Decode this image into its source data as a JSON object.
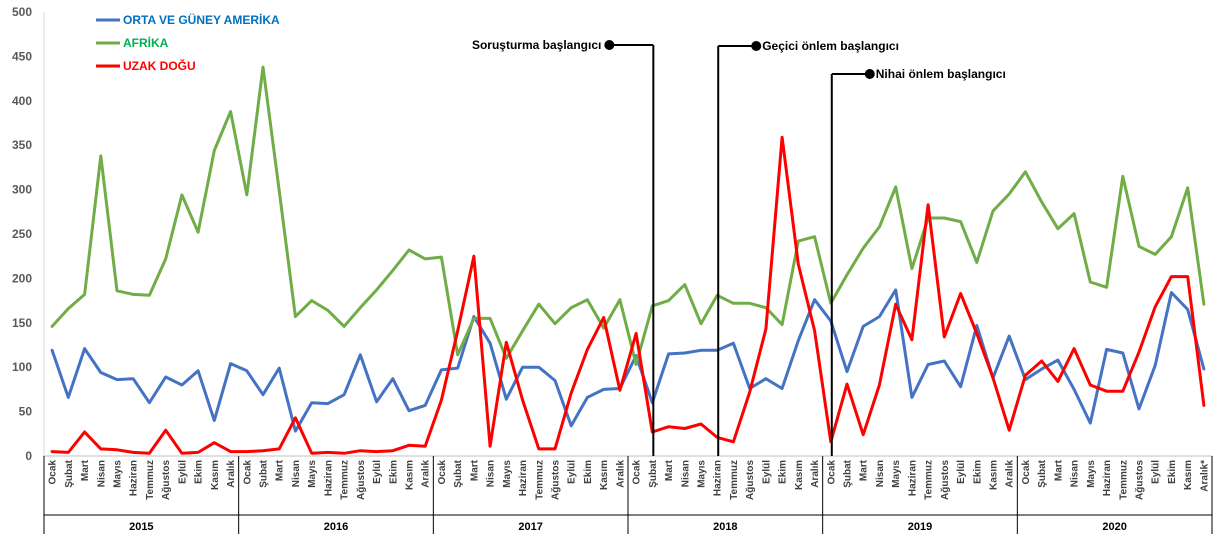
{
  "chart_data": {
    "type": "line",
    "title": "",
    "xlabel": "",
    "ylabel": "",
    "ylim": [
      0,
      500
    ],
    "yticks": [
      0,
      50,
      100,
      150,
      200,
      250,
      300,
      350,
      400,
      450,
      500
    ],
    "grid": false,
    "legend_position": "top-left",
    "months": [
      "Ocak",
      "Şubat",
      "Mart",
      "Nisan",
      "Mayıs",
      "Haziran",
      "Temmuz",
      "Ağustos",
      "Eylül",
      "Ekim",
      "Kasım",
      "Aralık"
    ],
    "last_month_label": "Aralık*",
    "years": [
      "2015",
      "2016",
      "2017",
      "2018",
      "2019",
      "2020"
    ],
    "series": [
      {
        "name": "ORTA VE GÜNEY AMERİKA",
        "color": "#4472C4",
        "label_color": "#0070C0",
        "values": [
          119,
          66,
          121,
          94,
          86,
          87,
          60,
          89,
          80,
          96,
          40,
          104,
          96,
          69,
          99,
          28,
          60,
          59,
          69,
          114,
          61,
          87,
          51,
          57,
          97,
          99,
          157,
          127,
          64,
          100,
          100,
          85,
          34,
          66,
          75,
          76,
          113,
          60,
          115,
          116,
          119,
          119,
          127,
          76,
          87,
          76,
          130,
          176,
          152,
          95,
          146,
          157,
          187,
          66,
          103,
          107,
          78,
          147,
          88,
          135,
          86,
          98,
          108,
          75,
          37,
          120,
          116,
          53,
          102,
          184,
          165,
          98
        ]
      },
      {
        "name": "AFRİKA",
        "color": "#70AD47",
        "label_color": "#00B050",
        "values": [
          146,
          166,
          182,
          338,
          186,
          182,
          181,
          222,
          294,
          252,
          344,
          388,
          294,
          438,
          299,
          157,
          175,
          164,
          146,
          167,
          187,
          209,
          232,
          222,
          224,
          114,
          155,
          155,
          110,
          141,
          171,
          149,
          167,
          176,
          144,
          176,
          103,
          169,
          175,
          193,
          149,
          181,
          172,
          172,
          167,
          148,
          242,
          247,
          172,
          204,
          234,
          258,
          303,
          211,
          268,
          268,
          264,
          218,
          276,
          295,
          320,
          286,
          256,
          273,
          196,
          190,
          315,
          236,
          227,
          247,
          302,
          171
        ]
      },
      {
        "name": "UZAK DOĞU",
        "color": "#FF0000",
        "label_color": "#FF0000",
        "values": [
          5,
          4,
          27,
          8,
          7,
          4,
          3,
          29,
          3,
          4,
          15,
          5,
          5,
          6,
          8,
          43,
          3,
          4,
          3,
          6,
          5,
          6,
          12,
          11,
          63,
          141,
          225,
          11,
          128,
          63,
          8,
          8,
          71,
          120,
          156,
          74,
          138,
          27,
          33,
          31,
          36,
          21,
          16,
          72,
          143,
          359,
          216,
          141,
          16,
          81,
          24,
          80,
          171,
          131,
          283,
          134,
          183,
          138,
          88,
          29,
          91,
          107,
          84,
          121,
          80,
          73,
          73,
          117,
          168,
          202,
          202,
          57
        ]
      }
    ],
    "annotations": [
      {
        "label": "Soruşturma başlangıcı",
        "at_index": 38
      },
      {
        "label": "Geçici önlem başlangıcı",
        "at_index": 42
      },
      {
        "label": "Nihai önlem başlangıcı",
        "at_index": 49
      }
    ]
  }
}
